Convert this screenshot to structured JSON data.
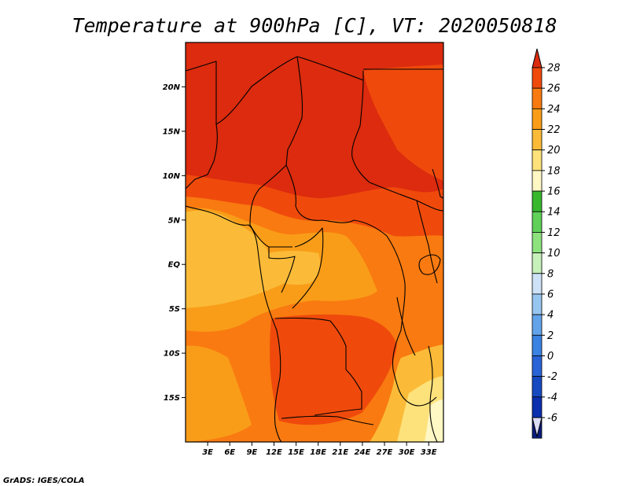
{
  "title": "Temperature at 900hPa [C], VT: 2020050818",
  "credit": "GrADS: IGES/COLA",
  "map": {
    "lon_range": [
      0,
      35
    ],
    "lat_range": [
      -20,
      25
    ],
    "lon_ticks": [
      "3E",
      "6E",
      "9E",
      "12E",
      "15E",
      "18E",
      "21E",
      "24E",
      "27E",
      "30E",
      "33E"
    ],
    "lon_tick_values": [
      3,
      6,
      9,
      12,
      15,
      18,
      21,
      24,
      27,
      30,
      33
    ],
    "lat_ticks": [
      "20N",
      "15N",
      "10N",
      "5N",
      "EQ",
      "5S",
      "10S",
      "15S"
    ],
    "lat_tick_values": [
      20,
      15,
      10,
      5,
      0,
      -5,
      -10,
      -15
    ]
  },
  "colorbar": {
    "labels": [
      "28",
      "26",
      "24",
      "22",
      "20",
      "18",
      "16",
      "14",
      "12",
      "10",
      "8",
      "6",
      "4",
      "2",
      "0",
      "-2",
      "-4",
      "-6"
    ],
    "colors": [
      "#dc2b0e",
      "#ef4a0c",
      "#f97a10",
      "#f99d19",
      "#fbbb38",
      "#fde27b",
      "#fff7c4",
      "#36b82f",
      "#60d058",
      "#8de27e",
      "#c6f1ba",
      "#cde2f7",
      "#97c6f1",
      "#63a3ea",
      "#3b82e2",
      "#2a63d6",
      "#1749c1",
      "#0b2fae",
      "#0a1b7c",
      "#dcdcf6"
    ],
    "top_arrow_color": "#dc2b0e",
    "bottom_arrow_color": "#dcdcf6"
  }
}
